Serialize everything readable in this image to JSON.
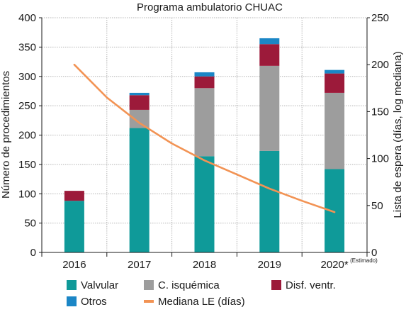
{
  "chart_data": {
    "type": "bar",
    "title": "Programa ambulatorio CHUAC",
    "categories": [
      "2016",
      "2017",
      "2018",
      "2019",
      "2020*"
    ],
    "category_note": "(Estimado)",
    "ylabel": "Número de procedimientos",
    "y2label": "Lista de espera (días, log mediana)",
    "ylim": [
      0,
      400
    ],
    "yticks": [
      "0",
      "50",
      "100",
      "150",
      "200",
      "250",
      "300",
      "350",
      "400"
    ],
    "y2lim": [
      0,
      250
    ],
    "y2ticks": [
      "0",
      "50",
      "100",
      "150",
      "200",
      "250"
    ],
    "grid": true,
    "legend_position": "bottom",
    "stacked": true,
    "series": [
      {
        "name": "Valvular",
        "color": "#0f9a99",
        "values": [
          88,
          212,
          164,
          173,
          142
        ]
      },
      {
        "name": "C. isquémica",
        "color": "#9d9d9d",
        "values": [
          0,
          31,
          116,
          145,
          130
        ]
      },
      {
        "name": "Disf. ventr.",
        "color": "#9c1a3a",
        "values": [
          17,
          25,
          20,
          37,
          33
        ]
      },
      {
        "name": "Otros",
        "color": "#1b86c6",
        "values": [
          0,
          4,
          7,
          10,
          6
        ]
      }
    ],
    "line_series": {
      "name": "Mediana LE (días)",
      "color": "#f29354",
      "axis": "right",
      "x": [
        2016.0,
        2016.5,
        2017.0,
        2017.5,
        2018.0,
        2018.5,
        2019.0,
        2019.5,
        2020.0
      ],
      "values": [
        200,
        165,
        138,
        116,
        98,
        83,
        68,
        55,
        43
      ]
    }
  }
}
